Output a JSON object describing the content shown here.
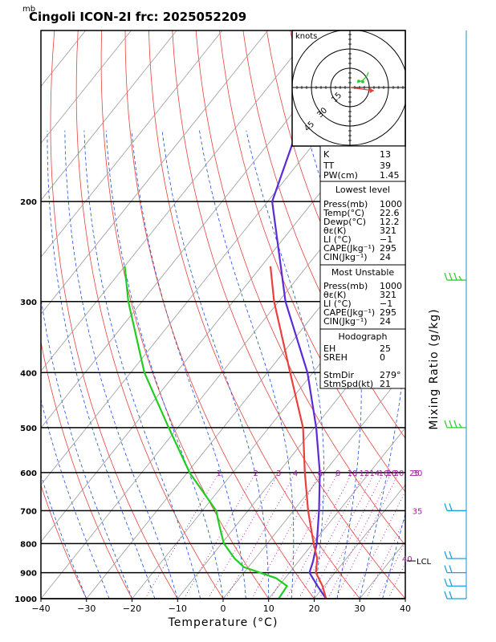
{
  "header": {
    "unit_label": "mb",
    "title": "Cingoli ICON-2I frc: 2025052209"
  },
  "chart_data": {
    "type": "skew-t",
    "xlabel": "Temperature (°C)",
    "right_label": "Mixing Ratio (g/kg)",
    "x_ticks": [
      -40,
      -30,
      -20,
      -10,
      0,
      10,
      20,
      30,
      40
    ],
    "x_tick_labels": [
      "−40",
      "−30",
      "−20",
      "−10",
      "0",
      "10",
      "20",
      "30",
      "40"
    ],
    "xlim": [
      -40,
      40
    ],
    "pressure_range_mb": [
      1000,
      100
    ],
    "pressure_ticks": [
      1000,
      900,
      800,
      700,
      600,
      500,
      400,
      300,
      200
    ],
    "mixing_ratio_labels": [
      "1",
      "2",
      "3",
      "4",
      "6",
      "8",
      "10",
      "12",
      "14",
      "16",
      "18",
      "20",
      "25",
      "30",
      "35",
      "40"
    ],
    "lcl_label": "LCL",
    "temperature_profile": {
      "color": "#e8413c",
      "points": [
        [
          1000,
          22.6
        ],
        [
          950,
          19.6
        ],
        [
          900,
          15.8
        ],
        [
          850,
          13.6
        ],
        [
          800,
          10.2
        ],
        [
          750,
          6.8
        ],
        [
          700,
          3.2
        ],
        [
          600,
          -4.2
        ],
        [
          500,
          -12.5
        ],
        [
          400,
          -25
        ],
        [
          300,
          -41
        ],
        [
          260,
          -48
        ]
      ]
    },
    "dewpoint_profile": {
      "color": "#22cc22",
      "points": [
        [
          1000,
          12.2
        ],
        [
          950,
          11.8
        ],
        [
          920,
          8.0
        ],
        [
          880,
          -1.0
        ],
        [
          850,
          -4.5
        ],
        [
          800,
          -9.5
        ],
        [
          750,
          -13.2
        ],
        [
          700,
          -17.0
        ],
        [
          600,
          -29.5
        ],
        [
          500,
          -42
        ],
        [
          400,
          -57
        ],
        [
          300,
          -73
        ],
        [
          260,
          -80
        ]
      ]
    },
    "parcel_profile": {
      "color": "#5a2bd6",
      "points": [
        [
          1000,
          22.6
        ],
        [
          950,
          18.5
        ],
        [
          900,
          14.4
        ],
        [
          860,
          13.2
        ],
        [
          800,
          10.9
        ],
        [
          700,
          5.6
        ],
        [
          600,
          -0.9
        ],
        [
          500,
          -9.6
        ],
        [
          400,
          -21.2
        ],
        [
          300,
          -38.5
        ],
        [
          200,
          -59
        ],
        [
          150,
          -66
        ],
        [
          120,
          -70
        ]
      ]
    },
    "wind_barb_pressures": [
      1000,
      950,
      900,
      850,
      700,
      500,
      275
    ]
  },
  "indices": {
    "k_label": "K",
    "k_value": "13",
    "tt_label": "TT",
    "tt_value": "39",
    "pw_label": "PW(cm)",
    "pw_value": "1.45"
  },
  "lowest_level": {
    "heading": "Lowest level",
    "rows": [
      {
        "label": "Press(mb)",
        "value": "1000"
      },
      {
        "label": "Temp(°C)",
        "value": "22.6"
      },
      {
        "label": "Dewp(°C)",
        "value": "12.2"
      },
      {
        "label": "θε(K)",
        "value": "321"
      },
      {
        "label": "LI (°C)",
        "value": "−1"
      },
      {
        "label": "CAPE(Jkg⁻¹)",
        "value": "295"
      },
      {
        "label": "CIN(Jkg⁻¹)",
        "value": "24"
      }
    ]
  },
  "most_unstable": {
    "heading": "Most Unstable",
    "rows": [
      {
        "label": "Press(mb)",
        "value": "1000"
      },
      {
        "label": "θε(K)",
        "value": "321"
      },
      {
        "label": "LI (°C)",
        "value": "−1"
      },
      {
        "label": "CAPE(Jkg⁻¹)",
        "value": "295"
      },
      {
        "label": "CIN(Jkg⁻¹)",
        "value": "24"
      }
    ]
  },
  "hodograph_box": {
    "heading": "Hodograph",
    "rows": [
      {
        "label": "EH",
        "value": "25"
      },
      {
        "label": "SREH",
        "value": "0"
      },
      {
        "label": "",
        "value": ""
      },
      {
        "label": "StmDir",
        "value": "279°"
      },
      {
        "label": "StmSpd(kt)",
        "value": "21"
      }
    ]
  },
  "hodograph_inset": {
    "units_label": "knots",
    "ring_labels": [
      "15",
      "30",
      "45"
    ]
  }
}
